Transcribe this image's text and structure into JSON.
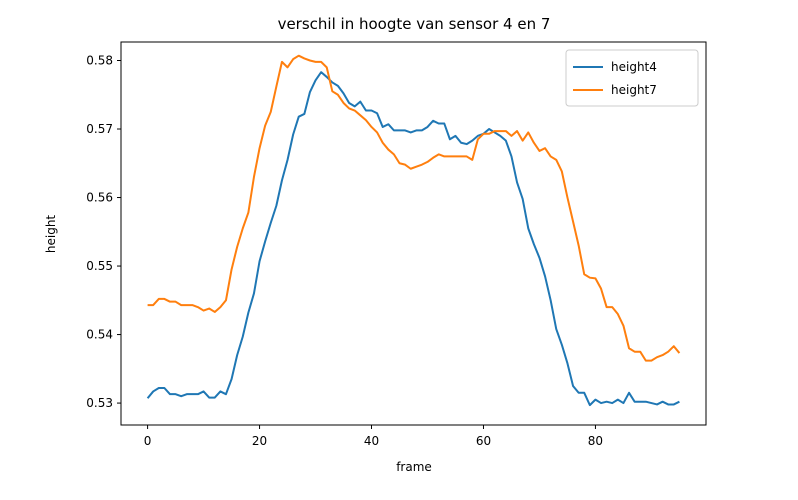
{
  "chart_data": {
    "type": "line",
    "title": "verschil in hoogte van sensor 4 en 7",
    "xlabel": "frame",
    "ylabel": "height",
    "xlim": [
      -4.75,
      99.75
    ],
    "ylim": [
      0.5268,
      0.5827
    ],
    "xticks": [
      0,
      20,
      40,
      60,
      80
    ],
    "yticks": [
      0.53,
      0.54,
      0.55,
      0.56,
      0.57,
      0.58
    ],
    "ytick_labels": [
      "0.53",
      "0.54",
      "0.55",
      "0.56",
      "0.57",
      "0.58"
    ],
    "grid": false,
    "legend": "top-right",
    "series": [
      {
        "name": "height4",
        "color": "#1f77b4",
        "x": [
          0,
          1,
          2,
          3,
          4,
          5,
          6,
          7,
          8,
          9,
          10,
          11,
          12,
          13,
          14,
          15,
          16,
          17,
          18,
          19,
          20,
          21,
          22,
          23,
          24,
          25,
          26,
          27,
          28,
          29,
          30,
          31,
          32,
          33,
          34,
          35,
          36,
          37,
          38,
          39,
          40,
          41,
          42,
          43,
          44,
          45,
          46,
          47,
          48,
          49,
          50,
          51,
          52,
          53,
          54,
          55,
          56,
          57,
          58,
          59,
          60,
          61,
          62,
          63,
          64,
          65,
          66,
          67,
          68,
          69,
          70,
          71,
          72,
          73,
          74,
          75,
          76,
          77,
          78,
          79,
          80,
          81,
          82,
          83,
          84,
          85,
          86,
          87,
          88,
          89,
          90,
          91,
          92,
          93,
          94,
          95
        ],
        "values": [
          0.5307,
          0.5317,
          0.5322,
          0.5322,
          0.5313,
          0.5313,
          0.531,
          0.5313,
          0.5313,
          0.5313,
          0.5317,
          0.5308,
          0.5308,
          0.5317,
          0.5313,
          0.5335,
          0.537,
          0.5397,
          0.5432,
          0.546,
          0.5507,
          0.5536,
          0.5563,
          0.5588,
          0.5625,
          0.5655,
          0.5692,
          0.5718,
          0.5722,
          0.5754,
          0.5771,
          0.5783,
          0.5776,
          0.5768,
          0.5763,
          0.5752,
          0.5738,
          0.5733,
          0.574,
          0.5727,
          0.5727,
          0.5723,
          0.5703,
          0.5707,
          0.5698,
          0.5698,
          0.5698,
          0.5695,
          0.5698,
          0.5698,
          0.5703,
          0.5712,
          0.5708,
          0.5708,
          0.5685,
          0.569,
          0.568,
          0.5678,
          0.5683,
          0.569,
          0.5693,
          0.57,
          0.5695,
          0.569,
          0.5683,
          0.566,
          0.5622,
          0.5598,
          0.5555,
          0.5532,
          0.5512,
          0.5485,
          0.545,
          0.5408,
          0.5385,
          0.5358,
          0.5325,
          0.5315,
          0.5315,
          0.5297,
          0.5305,
          0.53,
          0.5302,
          0.53,
          0.5305,
          0.53,
          0.5315,
          0.5302,
          0.5302,
          0.5302,
          0.53,
          0.5298,
          0.5302,
          0.5298,
          0.5298,
          0.5302
        ]
      },
      {
        "name": "height7",
        "color": "#ff7f0e",
        "x": [
          0,
          1,
          2,
          3,
          4,
          5,
          6,
          7,
          8,
          9,
          10,
          11,
          12,
          13,
          14,
          15,
          16,
          17,
          18,
          19,
          20,
          21,
          22,
          23,
          24,
          25,
          26,
          27,
          28,
          29,
          30,
          31,
          32,
          33,
          34,
          35,
          36,
          37,
          38,
          39,
          40,
          41,
          42,
          43,
          44,
          45,
          46,
          47,
          48,
          49,
          50,
          51,
          52,
          53,
          54,
          55,
          56,
          57,
          58,
          59,
          60,
          61,
          62,
          63,
          64,
          65,
          66,
          67,
          68,
          69,
          70,
          71,
          72,
          73,
          74,
          75,
          76,
          77,
          78,
          79,
          80,
          81,
          82,
          83,
          84,
          85,
          86,
          87,
          88,
          89,
          90,
          91,
          92,
          93,
          94,
          95
        ],
        "values": [
          0.5443,
          0.5443,
          0.5452,
          0.5452,
          0.5448,
          0.5448,
          0.5443,
          0.5443,
          0.5443,
          0.544,
          0.5435,
          0.5438,
          0.5433,
          0.544,
          0.545,
          0.5495,
          0.5528,
          0.5555,
          0.5578,
          0.563,
          0.5672,
          0.5705,
          0.5725,
          0.5762,
          0.5798,
          0.579,
          0.5802,
          0.5807,
          0.5803,
          0.58,
          0.5798,
          0.5798,
          0.579,
          0.5755,
          0.575,
          0.5738,
          0.573,
          0.5727,
          0.572,
          0.5713,
          0.5703,
          0.5695,
          0.568,
          0.567,
          0.5663,
          0.565,
          0.5648,
          0.5642,
          0.5645,
          0.5648,
          0.5652,
          0.5658,
          0.5663,
          0.566,
          0.566,
          0.566,
          0.566,
          0.566,
          0.5655,
          0.5685,
          0.5693,
          0.5693,
          0.5697,
          0.5697,
          0.5697,
          0.569,
          0.5697,
          0.5683,
          0.5695,
          0.568,
          0.5668,
          0.5672,
          0.566,
          0.5655,
          0.5638,
          0.56,
          0.5565,
          0.553,
          0.5488,
          0.5483,
          0.5482,
          0.5467,
          0.544,
          0.544,
          0.543,
          0.5413,
          0.538,
          0.5375,
          0.5375,
          0.5362,
          0.5362,
          0.5367,
          0.537,
          0.5375,
          0.5383,
          0.5373
        ]
      }
    ]
  }
}
